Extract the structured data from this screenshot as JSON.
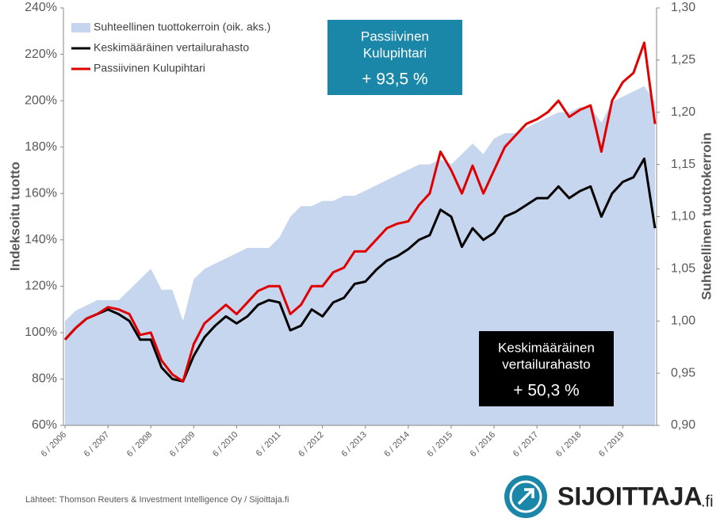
{
  "chart_data": {
    "type": "line",
    "categories": [
      "6 / 2006",
      null,
      null,
      null,
      "6 / 2007",
      null,
      null,
      null,
      "6 / 2008",
      null,
      null,
      null,
      "6 / 2009",
      null,
      null,
      null,
      "6 / 2010",
      null,
      null,
      null,
      "6 / 2011",
      null,
      null,
      null,
      "6 / 2012",
      null,
      null,
      null,
      "6 / 2013",
      null,
      null,
      null,
      "6 / 2014",
      null,
      null,
      null,
      "6 / 2015",
      null,
      null,
      null,
      "6 / 2016",
      null,
      null,
      null,
      "6 / 2017",
      null,
      null,
      null,
      "6 / 2018",
      null,
      null,
      null,
      "6 / 2019",
      null,
      null,
      null
    ],
    "series": [
      {
        "name": "Suhteellinen tuottokerroin (oik. aks.)",
        "color": "#c6d6ee",
        "axis": "y2",
        "kind": "area",
        "values": [
          1.0,
          1.01,
          1.015,
          1.02,
          1.02,
          1.02,
          1.03,
          1.04,
          1.05,
          1.03,
          1.03,
          1.0,
          1.04,
          1.05,
          1.055,
          1.06,
          1.065,
          1.07,
          1.07,
          1.07,
          1.08,
          1.1,
          1.11,
          1.11,
          1.115,
          1.115,
          1.12,
          1.12,
          1.125,
          1.13,
          1.135,
          1.14,
          1.145,
          1.15,
          1.15,
          1.155,
          1.15,
          1.16,
          1.17,
          1.16,
          1.175,
          1.18,
          1.18,
          1.185,
          1.19,
          1.195,
          1.2,
          1.2,
          1.205,
          1.205,
          1.19,
          1.21,
          1.215,
          1.22,
          1.225,
          1.21
        ]
      },
      {
        "name": "Keskimääräinen vertailurahasto",
        "color": "#000000",
        "values": [
          97,
          102,
          106,
          108,
          110,
          108,
          105,
          97,
          97,
          85,
          80,
          79,
          90,
          98,
          103,
          107,
          104,
          107,
          112,
          114,
          113,
          101,
          103,
          110,
          107,
          113,
          115,
          121,
          122,
          127,
          131,
          133,
          136,
          140,
          142,
          153,
          150,
          137,
          145,
          140,
          143,
          150,
          152,
          155,
          158,
          158,
          163,
          158,
          161,
          163,
          150,
          160,
          165,
          167,
          175,
          145
        ]
      },
      {
        "name": "Passiivinen Kulupihtari",
        "color": "#e00000",
        "values": [
          97,
          102,
          106,
          108,
          111,
          110,
          108,
          99,
          100,
          88,
          82,
          79,
          95,
          104,
          108,
          112,
          108,
          113,
          118,
          120,
          120,
          108,
          112,
          120,
          120,
          126,
          128,
          135,
          135,
          140,
          145,
          147,
          148,
          155,
          160,
          178,
          170,
          160,
          172,
          160,
          170,
          180,
          185,
          190,
          192,
          195,
          200,
          193,
          196,
          198,
          178,
          200,
          208,
          212,
          225,
          190
        ]
      }
    ],
    "ylim": [
      60,
      240
    ],
    "yticks": [
      {
        "value": 60,
        "label": "60%"
      },
      {
        "value": 80,
        "label": "80%"
      },
      {
        "value": 100,
        "label": "100%"
      },
      {
        "value": 120,
        "label": "120%"
      },
      {
        "value": 140,
        "label": "140%"
      },
      {
        "value": 160,
        "label": "160%"
      },
      {
        "value": 180,
        "label": "180%"
      },
      {
        "value": 200,
        "label": "200%"
      },
      {
        "value": 220,
        "label": "220%"
      },
      {
        "value": 240,
        "label": "240%"
      }
    ],
    "y2lim": [
      0.9,
      1.3
    ],
    "y2ticks": [
      {
        "value": 0.9,
        "label": "0,90"
      },
      {
        "value": 0.95,
        "label": "0,95"
      },
      {
        "value": 1.0,
        "label": "1,00"
      },
      {
        "value": 1.05,
        "label": "1,05"
      },
      {
        "value": 1.1,
        "label": "1,10"
      },
      {
        "value": 1.15,
        "label": "1,15"
      },
      {
        "value": 1.2,
        "label": "1,20"
      },
      {
        "value": 1.25,
        "label": "1,25"
      },
      {
        "value": 1.3,
        "label": "1,30"
      }
    ],
    "ylabel": "Indeksoitu tuotto",
    "y2label": "Suhteellinen tuottokerroin",
    "annotations": [
      {
        "lines": [
          "Passiivinen",
          "Kulupihtari"
        ],
        "value": "+ 93,5 %",
        "color": "#1a86a8"
      },
      {
        "lines": [
          "Keskimääräinen",
          "vertailurahasto"
        ],
        "value": "+ 50,3 %",
        "color": "#000000"
      }
    ],
    "source": "Lähteet: Thomson Reuters & Investment Intelligence Oy / Sijoittaja.fi",
    "logo": {
      "text": "SIJOITTAJA",
      "suffix": ".fi"
    }
  }
}
